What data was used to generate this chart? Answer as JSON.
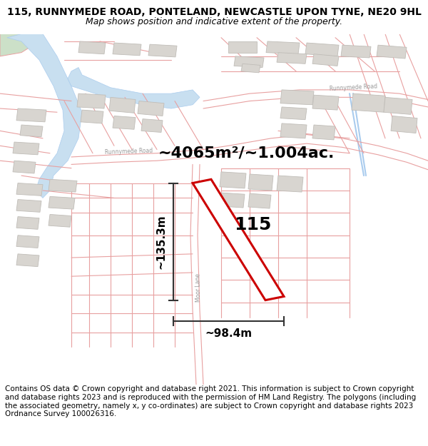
{
  "title_line1": "115, RUNNYMEDE ROAD, PONTELAND, NEWCASTLE UPON TYNE, NE20 9HL",
  "title_line2": "Map shows position and indicative extent of the property.",
  "area_label": "~4065m²/~1.004ac.",
  "property_number": "115",
  "dim_height": "~135.3m",
  "dim_width": "~98.4m",
  "footer_text": "Contains OS data © Crown copyright and database right 2021. This information is subject to Crown copyright and database rights 2023 and is reproduced with the permission of HM Land Registry. The polygons (including the associated geometry, namely x, y co-ordinates) are subject to Crown copyright and database rights 2023 Ordnance Survey 100026316.",
  "map_bg": "#ffffff",
  "plot_outline_color": "#cc0000",
  "road_outline_color": "#e8a0a0",
  "building_color": "#d8d5d0",
  "building_outline": "#c0bdb8",
  "dim_line_color": "#333333",
  "river_color": "#c8dff0",
  "green_color": "#cce0c8",
  "road_label_color": "#999999",
  "title_fontsize": 10,
  "subtitle_fontsize": 9,
  "area_fontsize": 16,
  "number_fontsize": 18,
  "dim_fontsize": 11,
  "footer_fontsize": 7.5
}
